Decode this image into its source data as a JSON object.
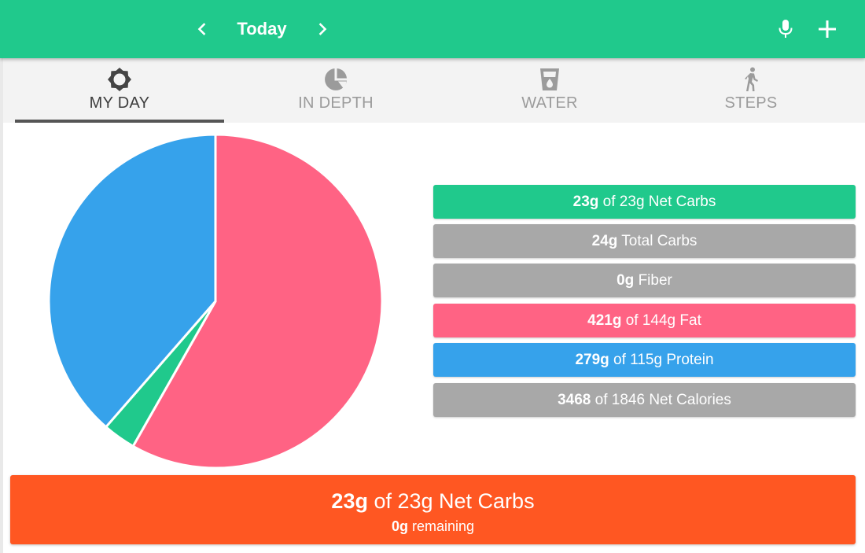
{
  "appbar": {
    "date_label": "Today",
    "background_color": "#20c98c",
    "icons": [
      "chevron-left-icon",
      "chevron-right-icon",
      "microphone-icon",
      "plus-icon"
    ]
  },
  "tabs": [
    {
      "label": "MY DAY",
      "icon": "sun-icon",
      "active": true
    },
    {
      "label": "IN DEPTH",
      "icon": "pie-chart-icon",
      "active": false
    },
    {
      "label": "WATER",
      "icon": "water-glass-icon",
      "active": false
    },
    {
      "label": "STEPS",
      "icon": "walking-person-icon",
      "active": false
    }
  ],
  "macros": [
    {
      "value": "23g",
      "text": " of 23g Net Carbs",
      "color": "#20c98c"
    },
    {
      "value": "24g",
      "text": " Total Carbs",
      "color": "#a8a8a8"
    },
    {
      "value": "0g",
      "text": " Fiber",
      "color": "#a8a8a8"
    },
    {
      "value": "421g",
      "text": " of 144g Fat",
      "color": "#ff6384"
    },
    {
      "value": "279g",
      "text": " of 115g Protein",
      "color": "#36a2eb"
    },
    {
      "value": "3468",
      "text": " of 1846 Net Calories",
      "color": "#a8a8a8"
    }
  ],
  "summary": {
    "value": "23g",
    "text": " of 23g Net Carbs",
    "remaining_value": "0g",
    "remaining_text": " remaining",
    "color": "#ff5722"
  },
  "chart_data": {
    "type": "pie",
    "slices": [
      {
        "label": "Net Carbs",
        "value": 23,
        "color": "#20c98c"
      },
      {
        "label": "Fat",
        "value": 421,
        "color": "#ff6384"
      },
      {
        "label": "Protein",
        "value": 279,
        "color": "#36a2eb"
      }
    ],
    "start_angle_deg": 0,
    "direction": "clockwise",
    "order_from_top": [
      "Fat",
      "Net Carbs",
      "Protein"
    ]
  }
}
